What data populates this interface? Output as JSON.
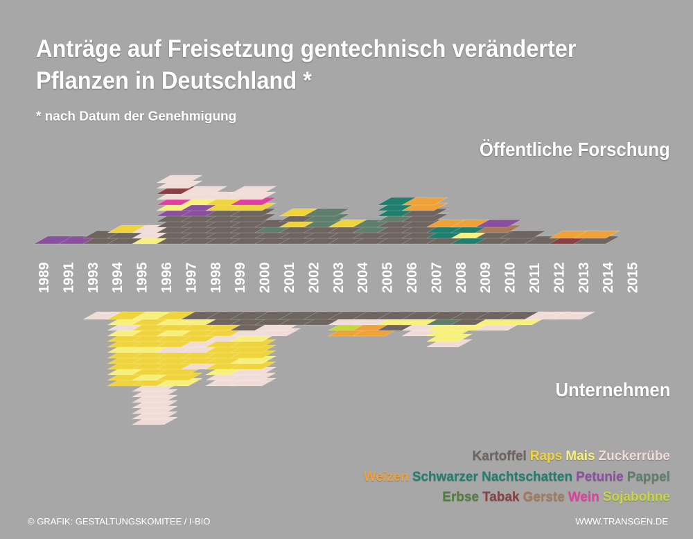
{
  "title_line1": "Anträge auf Freisetzung gentechnisch veränderter",
  "title_line2": "Pflanzen in Deutschland *",
  "subtitle": "* nach Datum der Genehmigung",
  "label_top": "Öffentliche Forschung",
  "label_bottom": "Unternehmen",
  "footer_left": "© GRAFIK: GESTALTUNGSKOMITEE / I-BIO",
  "footer_right": "WWW.TRANSGEN.DE",
  "legend": [
    [
      {
        "name": "Kartoffel",
        "color": "#6e6560"
      },
      {
        "name": "Raps",
        "color": "#f0d43e"
      },
      {
        "name": "Mais",
        "color": "#f8f07c"
      },
      {
        "name": "Zuckerrübe",
        "color": "#f0ddd8"
      }
    ],
    [
      {
        "name": "Weizen",
        "color": "#f0a23a"
      },
      {
        "name": "Schwarzer Nachtschatten",
        "color": "#1f7f6e"
      },
      {
        "name": "Petunie",
        "color": "#8a4f9e"
      },
      {
        "name": "Pappel",
        "color": "#5f7f6c"
      }
    ],
    [
      {
        "name": "Erbse",
        "color": "#4f7f3a"
      },
      {
        "name": "Tabak",
        "color": "#8a4040"
      },
      {
        "name": "Gerste",
        "color": "#a87a5a"
      },
      {
        "name": "Wein",
        "color": "#e040a0"
      },
      {
        "name": "Sojabohne",
        "color": "#c8d83a"
      }
    ]
  ],
  "chart_data": {
    "type": "bar",
    "title": "Anträge auf Freisetzung gentechnisch veränderter Pflanzen in Deutschland *",
    "categories": [
      "1989",
      "1991",
      "1993",
      "1994",
      "1995",
      "1996",
      "1997",
      "1998",
      "1999",
      "2000",
      "2001",
      "2002",
      "2003",
      "2004",
      "2005",
      "2006",
      "2007",
      "2008",
      "2009",
      "2010",
      "2011",
      "2012",
      "2013",
      "2014",
      "2015"
    ],
    "colors": {
      "Kartoffel": "#6e6560",
      "Raps": "#f0d43e",
      "Mais": "#f8f07c",
      "Zuckerrübe": "#f0ddd8",
      "Weizen": "#f0a23a",
      "Schwarzer Nachtschatten": "#1f7f6e",
      "Petunie": "#8a4f9e",
      "Pappel": "#5f7f6c",
      "Erbse": "#4f7f3a",
      "Tabak": "#8a4040",
      "Gerste": "#a87a5a",
      "Wein": "#e040a0",
      "Sojabohne": "#c8d83a"
    },
    "public": [
      [
        "Petunie"
      ],
      [
        "Petunie"
      ],
      [
        "Kartoffel",
        "Kartoffel"
      ],
      [
        "Kartoffel",
        "Kartoffel",
        "Raps"
      ],
      [
        "Mais",
        "Zuckerrübe",
        "Zuckerrübe"
      ],
      [
        "Kartoffel",
        "Kartoffel",
        "Kartoffel",
        "Kartoffel",
        "Kartoffel",
        "Petunie",
        "Mais",
        "Wein",
        "Zuckerrübe",
        "Tabak",
        "Zuckerrübe",
        "Zuckerrübe"
      ],
      [
        "Kartoffel",
        "Kartoffel",
        "Kartoffel",
        "Kartoffel",
        "Kartoffel",
        "Petunie",
        "Petunie",
        "Mais",
        "Zuckerrübe",
        "Zuckerrübe"
      ],
      [
        "Kartoffel",
        "Kartoffel",
        "Kartoffel",
        "Kartoffel",
        "Kartoffel",
        "Kartoffel",
        "Raps",
        "Raps",
        "Zuckerrübe"
      ],
      [
        "Kartoffel",
        "Kartoffel",
        "Kartoffel",
        "Kartoffel",
        "Kartoffel",
        "Kartoffel",
        "Raps",
        "Wein",
        "Zuckerrübe",
        "Zuckerrübe"
      ],
      [
        "Kartoffel",
        "Kartoffel",
        "Pappel",
        "Kartoffel"
      ],
      [
        "Kartoffel",
        "Kartoffel",
        "Kartoffel",
        "Raps",
        "Kartoffel",
        "Raps"
      ],
      [
        "Kartoffel",
        "Kartoffel",
        "Kartoffel",
        "Pappel",
        "Pappel",
        "Pappel"
      ],
      [
        "Kartoffel",
        "Kartoffel",
        "Kartoffel",
        "Raps"
      ],
      [
        "Kartoffel",
        "Kartoffel",
        "Pappel",
        "Pappel"
      ],
      [
        "Kartoffel",
        "Kartoffel",
        "Kartoffel",
        "Kartoffel",
        "Pappel",
        "Schwarzer Nachtschatten",
        "Schwarzer Nachtschatten",
        "Schwarzer Nachtschatten"
      ],
      [
        "Kartoffel",
        "Kartoffel",
        "Kartoffel",
        "Kartoffel",
        "Kartoffel",
        "Kartoffel",
        "Weizen",
        "Weizen"
      ],
      [
        "Kartoffel",
        "Schwarzer Nachtschatten",
        "Schwarzer Nachtschatten",
        "Weizen"
      ],
      [
        "Schwarzer Nachtschatten",
        "Mais",
        "Schwarzer Nachtschatten",
        "Weizen"
      ],
      [
        "Kartoffel",
        "Kartoffel",
        "Gerste",
        "Petunie"
      ],
      [
        "Kartoffel",
        "Kartoffel"
      ],
      [
        "Kartoffel"
      ],
      [
        "Tabak",
        "Weizen"
      ],
      [
        "Kartoffel",
        "Weizen"
      ],
      [],
      []
    ],
    "companies": [
      [],
      [],
      [
        "Zuckerrübe"
      ],
      [
        "Raps",
        "Mais",
        "Zuckerrübe",
        "Mais",
        "Raps",
        "Raps",
        "Mais",
        "Raps",
        "Raps",
        "Raps",
        "Mais",
        "Raps",
        "Raps"
      ],
      [
        "Mais",
        "Raps",
        "Raps",
        "Raps",
        "Raps",
        "Raps",
        "Mais",
        "Raps",
        "Raps",
        "Raps",
        "Raps",
        "Mais",
        "Raps",
        "Zuckerrübe",
        "Zuckerrübe",
        "Zuckerrübe",
        "Zuckerrübe",
        "Zuckerrübe",
        "Zuckerrübe",
        "Zuckerrübe"
      ],
      [
        "Raps",
        "Mais",
        "Raps",
        "Mais",
        "Raps",
        "Raps",
        "Zuckerrübe",
        "Raps",
        "Raps",
        "Raps",
        "Raps",
        "Raps",
        "Mais"
      ],
      [
        "Kartoffel",
        "Mais",
        "Raps",
        "Raps",
        "Raps",
        "Zuckerrübe",
        "Zuckerrübe",
        "Raps",
        "Raps",
        "Zuckerrübe"
      ],
      [
        "Kartoffel",
        "Kartoffel",
        "Raps",
        "Raps",
        "Zuckerrübe",
        "Raps",
        "Raps",
        "Raps",
        "Raps",
        "Raps",
        "Mais",
        "Zuckerrübe",
        "Zuckerrübe"
      ],
      [
        "Kartoffel",
        "Kartoffel",
        "Kartoffel",
        "Zuckerrübe",
        "Mais",
        "Raps",
        "Raps",
        "Raps",
        "Mais",
        "Raps",
        "Zuckerrübe",
        "Zuckerrübe",
        "Zuckerrübe"
      ],
      [
        "Kartoffel",
        "Kartoffel",
        "Zuckerrübe",
        "Zuckerrübe"
      ],
      [
        "Kartoffel",
        "Kartoffel"
      ],
      [
        "Kartoffel",
        "Kartoffel"
      ],
      [
        "Kartoffel",
        "Zuckerrübe",
        "Sojabohne",
        "Weizen"
      ],
      [
        "Kartoffel",
        "Zuckerrübe",
        "Weizen",
        "Weizen"
      ],
      [
        "Kartoffel",
        "Mais",
        "Kartoffel"
      ],
      [
        "Kartoffel",
        "Mais",
        "Zuckerrübe",
        "Zuckerrübe"
      ],
      [
        "Kartoffel",
        "Pappel",
        "Mais",
        "Mais",
        "Mais",
        "Zuckerrübe"
      ],
      [
        "Kartoffel",
        "Kartoffel",
        "Mais"
      ],
      [
        "Kartoffel",
        "Mais",
        "Zuckerrübe"
      ],
      [
        "Kartoffel",
        "Mais"
      ],
      [
        "Zuckerrübe"
      ],
      [
        "Zuckerrübe"
      ],
      [],
      [],
      []
    ]
  }
}
